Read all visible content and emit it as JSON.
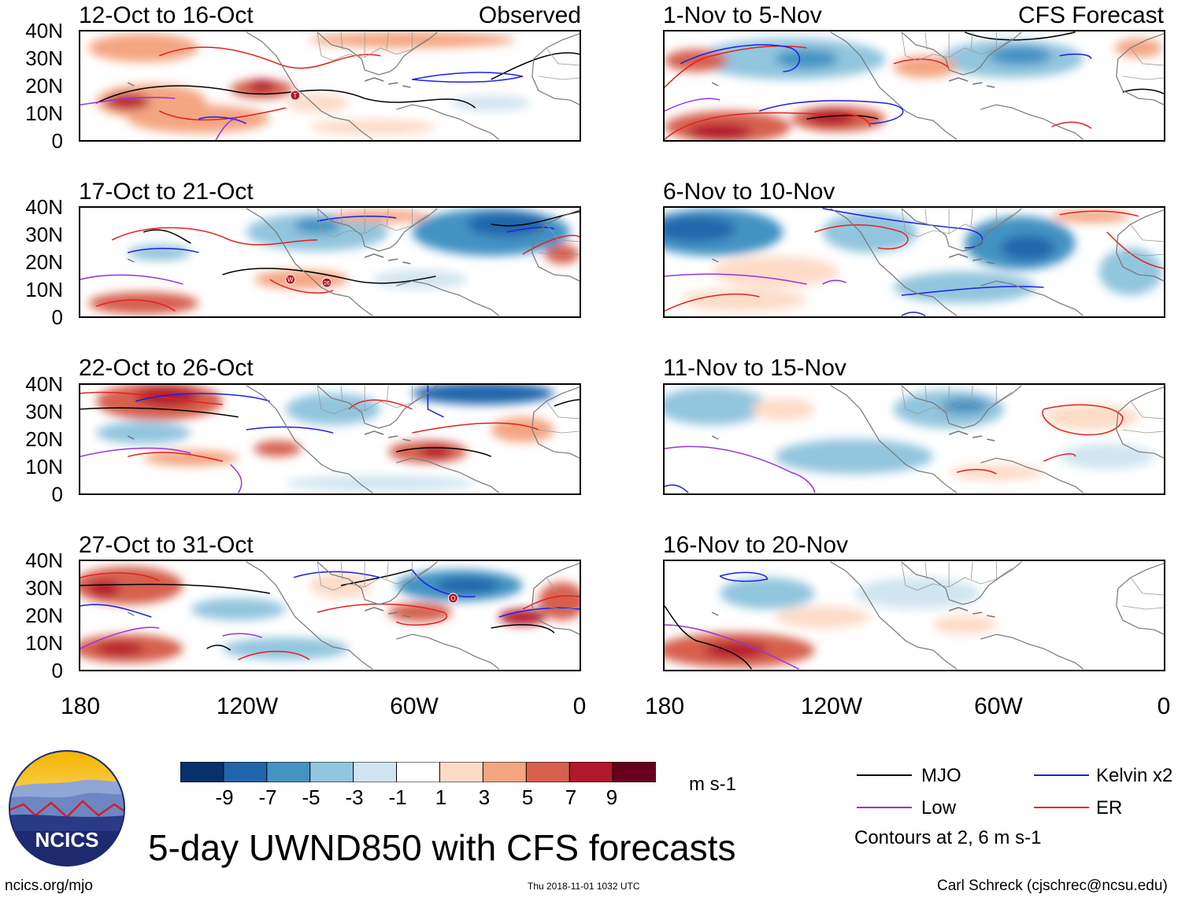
{
  "panels": {
    "left": [
      {
        "title": "12-Oct to 16-Oct",
        "label": "Observed"
      },
      {
        "title": "17-Oct to 21-Oct",
        "label": ""
      },
      {
        "title": "22-Oct to 26-Oct",
        "label": ""
      },
      {
        "title": "27-Oct to 31-Oct",
        "label": ""
      }
    ],
    "right": [
      {
        "title": "1-Nov to 5-Nov",
        "label": "CFS Forecast"
      },
      {
        "title": "6-Nov to 10-Nov",
        "label": ""
      },
      {
        "title": "11-Nov to 15-Nov",
        "label": ""
      },
      {
        "title": "16-Nov to 20-Nov",
        "label": ""
      }
    ]
  },
  "latitude_labels": [
    "40N",
    "30N",
    "20N",
    "10N",
    "0"
  ],
  "longitude_labels": [
    "180",
    "120W",
    "60W",
    "0"
  ],
  "colorbar": {
    "tick_labels": [
      "-9",
      "-7",
      "-5",
      "-3",
      "-1",
      "1",
      "3",
      "5",
      "7",
      "9"
    ],
    "units": "m s-1",
    "colors": [
      "#08306b",
      "#2166ac",
      "#4393c3",
      "#92c5de",
      "#d1e5f0",
      "#ffffff",
      "#fddbc7",
      "#f4a582",
      "#d6604d",
      "#b2182b",
      "#67001f"
    ]
  },
  "legend": {
    "items": [
      {
        "label": "MJO",
        "color": "#000000"
      },
      {
        "label": "Kelvin x2",
        "color": "#1f1fe6"
      },
      {
        "label": "Low",
        "color": "#9933dd"
      },
      {
        "label": "ER",
        "color": "#e62020"
      }
    ],
    "contours_note": "Contours at 2, 6 m s-1"
  },
  "title": "5-day UWND850 with CFS forecasts",
  "logo": {
    "text": "NCICS"
  },
  "footer": {
    "website": "ncics.org/mjo",
    "timestamp": "Thu 2018-11-01 1032 UTC",
    "credit": "Carl Schreck (cjschrec@ncsu.edu)"
  },
  "storm_markers": [
    {
      "panel": 0,
      "label": "T"
    },
    {
      "panel": 1,
      "label": "W"
    },
    {
      "panel": 1,
      "label": "26"
    },
    {
      "panel": 3,
      "label": "O"
    }
  ]
}
